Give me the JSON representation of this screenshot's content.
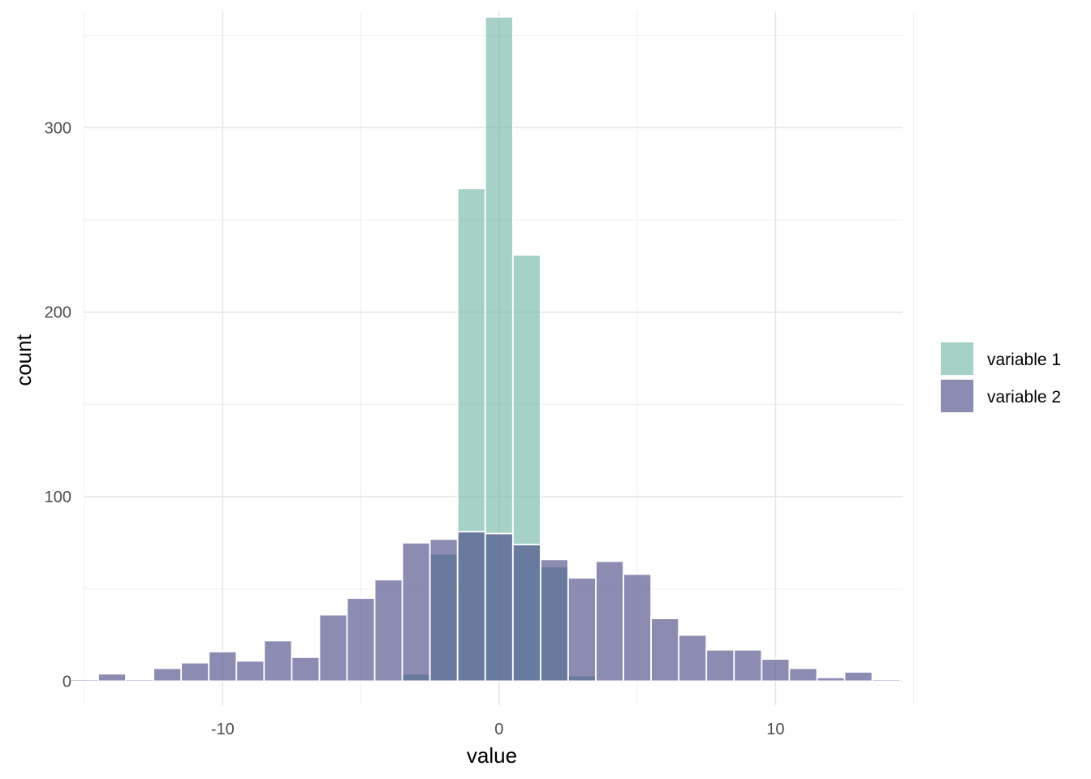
{
  "chart_data": {
    "type": "histogram",
    "title": "",
    "xlabel": "value",
    "ylabel": "count",
    "xlim": [
      -15.0,
      14.6
    ],
    "ylim": [
      -13,
      363
    ],
    "bin_width": 1.0,
    "x_ticks": [
      {
        "value": -10,
        "label": "-10"
      },
      {
        "value": 0,
        "label": "0"
      },
      {
        "value": 10,
        "label": "10"
      }
    ],
    "y_ticks": [
      {
        "value": 0,
        "label": "0"
      },
      {
        "value": 100,
        "label": "100"
      },
      {
        "value": 200,
        "label": "200"
      },
      {
        "value": 300,
        "label": "300"
      }
    ],
    "grid": true,
    "legend_position": "right",
    "series": [
      {
        "name": "variable 1",
        "color": "#69b3a2",
        "bins": [
          {
            "x": -3,
            "count": 4
          },
          {
            "x": -2,
            "count": 69
          },
          {
            "x": -1,
            "count": 267
          },
          {
            "x": 0,
            "count": 360
          },
          {
            "x": 1,
            "count": 231
          },
          {
            "x": 2,
            "count": 62
          },
          {
            "x": 3,
            "count": 3
          }
        ]
      },
      {
        "name": "variable 2",
        "color": "#404080",
        "bins": [
          {
            "x": -15,
            "count": 1
          },
          {
            "x": -14,
            "count": 4
          },
          {
            "x": -13,
            "count": 1
          },
          {
            "x": -12,
            "count": 7
          },
          {
            "x": -11,
            "count": 10
          },
          {
            "x": -10,
            "count": 16
          },
          {
            "x": -9,
            "count": 11
          },
          {
            "x": -8,
            "count": 22
          },
          {
            "x": -7,
            "count": 13
          },
          {
            "x": -6,
            "count": 36
          },
          {
            "x": -5,
            "count": 45
          },
          {
            "x": -4,
            "count": 55
          },
          {
            "x": -3,
            "count": 75
          },
          {
            "x": -2,
            "count": 77
          },
          {
            "x": -1,
            "count": 81
          },
          {
            "x": 0,
            "count": 80
          },
          {
            "x": 1,
            "count": 74
          },
          {
            "x": 2,
            "count": 66
          },
          {
            "x": 3,
            "count": 56
          },
          {
            "x": 4,
            "count": 65
          },
          {
            "x": 5,
            "count": 58
          },
          {
            "x": 6,
            "count": 34
          },
          {
            "x": 7,
            "count": 25
          },
          {
            "x": 8,
            "count": 17
          },
          {
            "x": 9,
            "count": 17
          },
          {
            "x": 10,
            "count": 12
          },
          {
            "x": 11,
            "count": 7
          },
          {
            "x": 12,
            "count": 2
          },
          {
            "x": 13,
            "count": 5
          },
          {
            "x": 14,
            "count": 1
          }
        ]
      }
    ]
  }
}
